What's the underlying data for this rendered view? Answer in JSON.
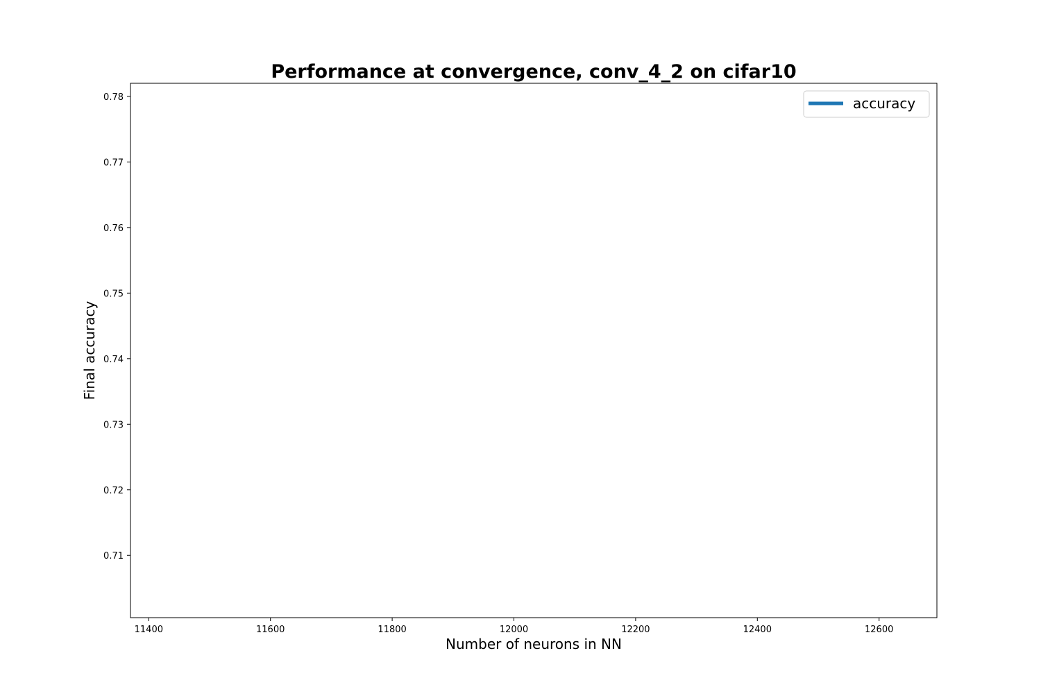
{
  "chart_data": {
    "type": "line",
    "title": "Performance at convergence, conv_4_2 on cifar10",
    "xlabel": "Number of neurons in NN",
    "ylabel": "Final accuracy",
    "xlim": [
      11370,
      12695
    ],
    "ylim": [
      0.7005,
      0.782
    ],
    "x_ticks": [
      11400,
      11600,
      11800,
      12000,
      12200,
      12400,
      12600
    ],
    "y_ticks": [
      0.71,
      0.72,
      0.73,
      0.74,
      0.75,
      0.76,
      0.77,
      0.78
    ],
    "x_tick_labels": [
      "11400",
      "11600",
      "11800",
      "12000",
      "12200",
      "12400",
      "12600"
    ],
    "y_tick_labels": [
      "0.71",
      "0.72",
      "0.73",
      "0.74",
      "0.75",
      "0.76",
      "0.77",
      "0.78"
    ],
    "grid": false,
    "legend_position": "top-right",
    "series": [
      {
        "name": "accuracy",
        "color": "#1f77b4",
        "x": [],
        "y": []
      }
    ]
  }
}
